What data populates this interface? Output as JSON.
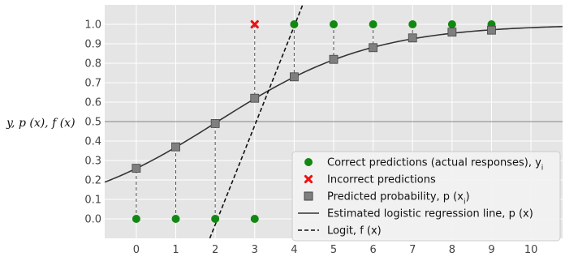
{
  "chart_data": {
    "type": "scatter",
    "ylabel": "y,  p (x),  f (x)",
    "xlim": [
      -0.8,
      10.8
    ],
    "ylim": [
      -0.1,
      1.1
    ],
    "x_ticks": [
      0,
      1,
      2,
      3,
      4,
      5,
      6,
      7,
      8,
      9,
      10
    ],
    "y_ticks": [
      0.0,
      0.1,
      0.2,
      0.3,
      0.4,
      0.5,
      0.6,
      0.7,
      0.8,
      0.9,
      1.0
    ],
    "y_tick_labels": [
      "0.0",
      "0.1",
      "0.2",
      "0.3",
      "0.4",
      "0.5",
      "0.6",
      "0.7",
      "0.8",
      "0.9",
      "1.0"
    ],
    "threshold": 0.5,
    "logistic": {
      "intercept": -1.05,
      "slope": 0.51
    },
    "correct_predictions": {
      "name": "Correct predictions (actual responses), y",
      "subscript": "i",
      "color": "#118811",
      "x": [
        0,
        1,
        2,
        3,
        4,
        5,
        6,
        7,
        8,
        9
      ],
      "y": [
        0,
        0,
        0,
        0,
        1,
        1,
        1,
        1,
        1,
        1
      ]
    },
    "incorrect_predictions": {
      "name": "Incorrect predictions",
      "color": "#ee1111",
      "x": [
        3
      ],
      "y": [
        1
      ]
    },
    "predicted_probability": {
      "name": "Predicted probability, p (x",
      "subscript": "i",
      "name_suffix": ")",
      "color": "#7f7f7f",
      "x": [
        0,
        1,
        2,
        3,
        4,
        5,
        6,
        7,
        8,
        9
      ],
      "y": [
        0.26,
        0.37,
        0.49,
        0.62,
        0.73,
        0.82,
        0.88,
        0.93,
        0.96,
        0.97
      ]
    },
    "logistic_line": {
      "name": "Estimated logistic regression line, p (x)",
      "color": "#333333",
      "x_range": [
        -0.8,
        10.8
      ]
    },
    "logit_line": {
      "name": "Logit, f (x)",
      "color": "#111111",
      "style": "dashed"
    },
    "grid": true,
    "background": "#e5e5e5",
    "legend_position": "lower-right"
  }
}
